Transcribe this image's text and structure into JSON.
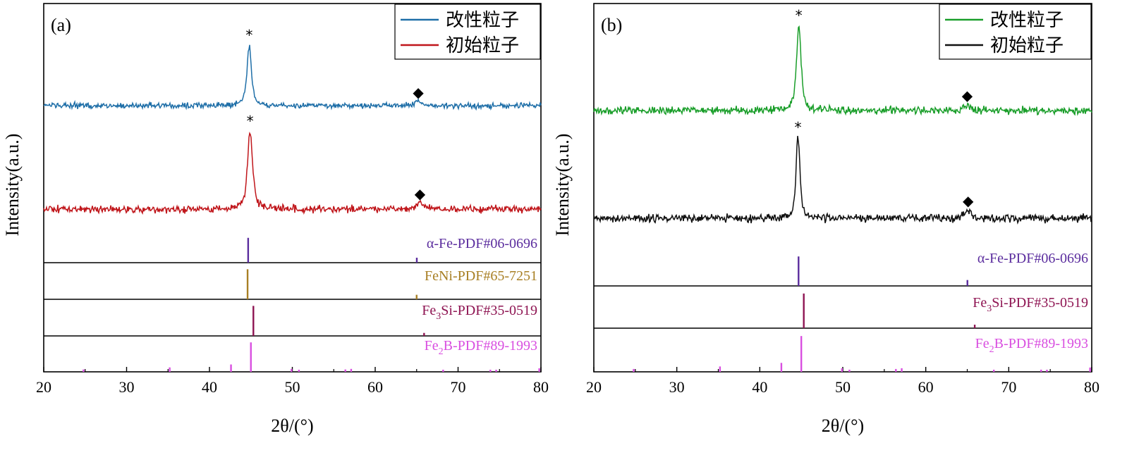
{
  "figure": {
    "xlabel": "2θ/(°)",
    "ylabel": "Intensity(a.u.)"
  },
  "chart_data": [
    {
      "panel_label": "(a)",
      "type": "line",
      "xlim": [
        20,
        80
      ],
      "xticks": [
        20,
        30,
        40,
        50,
        60,
        70,
        80
      ],
      "xlabel": "2θ/(°)",
      "ylabel": "Intensity(a.u.)",
      "legend_position": "top-right",
      "series": [
        {
          "name": "改性粒子",
          "color": "#1f6fa8",
          "baseline": 0.95,
          "noise": 0.06,
          "peaks": [
            {
              "x": 44.8,
              "height": 1.0,
              "width": 0.35,
              "marker": "*"
            },
            {
              "x": 65.2,
              "height": 0.07,
              "width": 0.5,
              "marker": "◆"
            }
          ]
        },
        {
          "name": "初始粒子",
          "color": "#c0161b",
          "baseline": 0.0,
          "noise": 0.06,
          "peaks": [
            {
              "x": 44.9,
              "height": 1.0,
              "width": 0.4,
              "marker": "*"
            },
            {
              "x": 65.4,
              "height": 0.08,
              "width": 0.6,
              "marker": "◆"
            }
          ]
        }
      ],
      "reference_patterns": [
        {
          "label_pre": "α-Fe-PDF#06-0696",
          "sub": "",
          "label_post": "",
          "color": "#5b2d9e",
          "lines": [
            {
              "x": 44.67,
              "i": 100
            },
            {
              "x": 65.02,
              "i": 20
            }
          ]
        },
        {
          "label_pre": "FeNi-PDF#65-7251",
          "sub": "",
          "label_post": "",
          "color": "#a87f24",
          "lines": [
            {
              "x": 44.6,
              "i": 100
            },
            {
              "x": 65.0,
              "i": 15
            }
          ]
        },
        {
          "label_pre": "Fe",
          "sub": "3",
          "label_post": "Si-PDF#35-0519",
          "color": "#8e1452",
          "lines": [
            {
              "x": 45.3,
              "i": 100
            },
            {
              "x": 65.9,
              "i": 10
            }
          ]
        },
        {
          "label_pre": "Fe",
          "sub": "2",
          "label_post": "B-PDF#89-1993",
          "color": "#d94fe0",
          "lines": [
            {
              "x": 24.8,
              "i": 8
            },
            {
              "x": 35.2,
              "i": 15
            },
            {
              "x": 42.6,
              "i": 25
            },
            {
              "x": 45.0,
              "i": 100
            },
            {
              "x": 49.9,
              "i": 10
            },
            {
              "x": 50.8,
              "i": 6
            },
            {
              "x": 56.4,
              "i": 8
            },
            {
              "x": 57.1,
              "i": 10
            },
            {
              "x": 68.2,
              "i": 5
            },
            {
              "x": 73.9,
              "i": 6
            },
            {
              "x": 74.6,
              "i": 5
            },
            {
              "x": 79.8,
              "i": 12
            }
          ]
        }
      ]
    },
    {
      "panel_label": "(b)",
      "type": "line",
      "xlim": [
        20,
        80
      ],
      "xticks": [
        20,
        30,
        40,
        50,
        60,
        70,
        80
      ],
      "xlabel": "2θ/(°)",
      "ylabel": "Intensity(a.u.)",
      "legend_position": "top-right",
      "series": [
        {
          "name": "改性粒子",
          "color": "#1a9e2a",
          "baseline": 1.0,
          "noise": 0.05,
          "peaks": [
            {
              "x": 44.7,
              "height": 1.0,
              "width": 0.35,
              "marker": "*"
            },
            {
              "x": 65.0,
              "height": 0.07,
              "width": 0.5,
              "marker": "◆"
            }
          ]
        },
        {
          "name": "初始粒子",
          "color": "#111111",
          "baseline": 0.0,
          "noise": 0.06,
          "peaks": [
            {
              "x": 44.6,
              "height": 0.95,
              "width": 0.3,
              "marker": "*"
            },
            {
              "x": 65.1,
              "height": 0.1,
              "width": 0.5,
              "marker": "◆"
            }
          ]
        }
      ],
      "reference_patterns": [
        {
          "label_pre": "α-Fe-PDF#06-0696",
          "sub": "",
          "label_post": "",
          "color": "#5b2d9e",
          "lines": [
            {
              "x": 44.67,
              "i": 100
            },
            {
              "x": 65.02,
              "i": 20
            }
          ]
        },
        {
          "label_pre": "Fe",
          "sub": "3",
          "label_post": "Si-PDF#35-0519",
          "color": "#8e1452",
          "lines": [
            {
              "x": 45.3,
              "i": 100
            },
            {
              "x": 65.9,
              "i": 10
            }
          ]
        },
        {
          "label_pre": "Fe",
          "sub": "2",
          "label_post": "B-PDF#89-1993",
          "color": "#d94fe0",
          "lines": [
            {
              "x": 24.8,
              "i": 8
            },
            {
              "x": 35.2,
              "i": 15
            },
            {
              "x": 42.6,
              "i": 25
            },
            {
              "x": 45.0,
              "i": 100
            },
            {
              "x": 49.9,
              "i": 10
            },
            {
              "x": 50.8,
              "i": 6
            },
            {
              "x": 56.4,
              "i": 8
            },
            {
              "x": 57.1,
              "i": 10
            },
            {
              "x": 68.2,
              "i": 5
            },
            {
              "x": 73.9,
              "i": 6
            },
            {
              "x": 74.6,
              "i": 5
            },
            {
              "x": 79.8,
              "i": 12
            }
          ]
        }
      ]
    }
  ]
}
